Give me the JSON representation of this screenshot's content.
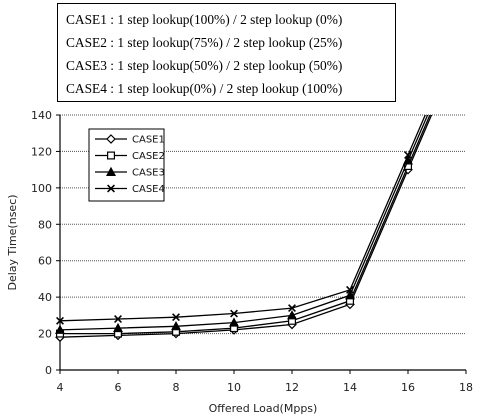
{
  "cases_box": {
    "lines": [
      "CASE1 : 1 step lookup(100%) / 2 step lookup (0%)",
      "CASE2 : 1 step lookup(75%) / 2 step lookup (25%)",
      "CASE3 : 1 step lookup(50%) / 2 step lookup (50%)",
      "CASE4 : 1 step lookup(0%) / 2 step lookup (100%)"
    ]
  },
  "chart_data": {
    "type": "line",
    "title": "",
    "xlabel": "Offered Load(Mpps)",
    "ylabel": "Delay Time(nsec)",
    "xlim": [
      4,
      18
    ],
    "ylim": [
      0,
      140
    ],
    "x_ticks": [
      4,
      6,
      8,
      10,
      12,
      14,
      16,
      18
    ],
    "y_ticks": [
      0,
      20,
      40,
      60,
      80,
      100,
      120,
      140
    ],
    "grid": "horizontal",
    "legend_position": "top-left",
    "x": [
      4,
      6,
      8,
      10,
      12,
      14,
      16
    ],
    "series": [
      {
        "name": "CASE1",
        "marker": "diamond",
        "values": [
          18,
          19,
          20,
          22,
          25,
          36,
          110
        ]
      },
      {
        "name": "CASE2",
        "marker": "square",
        "values": [
          20,
          20,
          21,
          23,
          27,
          38,
          112
        ]
      },
      {
        "name": "CASE3",
        "marker": "triangle",
        "values": [
          22,
          23,
          24,
          26,
          30,
          41,
          115
        ]
      },
      {
        "name": "CASE4",
        "marker": "x",
        "values": [
          27,
          28,
          29,
          31,
          34,
          44,
          118
        ]
      }
    ],
    "line_color": "#000000"
  }
}
